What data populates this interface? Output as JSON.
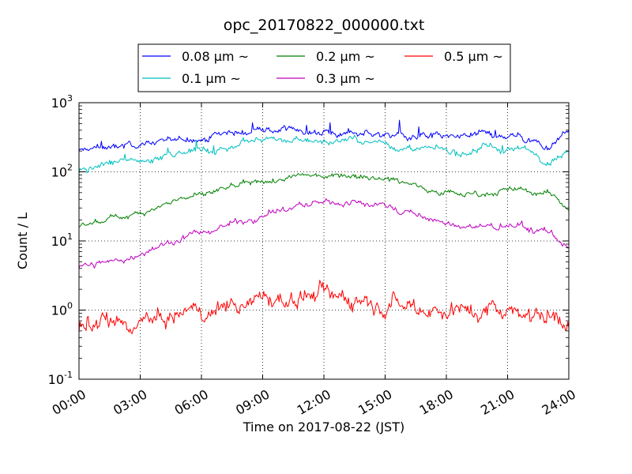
{
  "chart_data": {
    "type": "line",
    "title": "opc_20170822_000000.txt",
    "xlabel": "Time on 2017-08-22 (JST)",
    "ylabel": "Count / L",
    "y_scale": "log",
    "ylim": [
      0.1,
      1000
    ],
    "xlim": [
      "00:00",
      "24:00"
    ],
    "x_ticks": [
      "00:00",
      "03:00",
      "06:00",
      "09:00",
      "12:00",
      "15:00",
      "18:00",
      "21:00",
      "24:00"
    ],
    "y_ticks": [
      {
        "base": "10",
        "exp": "-1"
      },
      {
        "base": "10",
        "exp": "0"
      },
      {
        "base": "10",
        "exp": "1"
      },
      {
        "base": "10",
        "exp": "2"
      },
      {
        "base": "10",
        "exp": "3"
      }
    ],
    "grid": true,
    "legend_position": "top-center",
    "x": [
      "00:00",
      "01:00",
      "02:00",
      "03:00",
      "04:00",
      "05:00",
      "06:00",
      "07:00",
      "08:00",
      "09:00",
      "10:00",
      "11:00",
      "12:00",
      "13:00",
      "14:00",
      "15:00",
      "16:00",
      "17:00",
      "18:00",
      "19:00",
      "20:00",
      "21:00",
      "22:00",
      "23:00",
      "24:00"
    ],
    "series": [
      {
        "name": "0.08 μm ~",
        "color": "#0000ff",
        "noise": 0.05,
        "values": [
          200,
          220,
          240,
          260,
          270,
          300,
          320,
          350,
          400,
          420,
          400,
          400,
          380,
          370,
          380,
          350,
          320,
          300,
          300,
          320,
          330,
          340,
          300,
          220,
          450
        ]
      },
      {
        "name": "0.1 μm ~",
        "color": "#00bfbf",
        "noise": 0.05,
        "values": [
          100,
          120,
          140,
          150,
          160,
          190,
          200,
          230,
          270,
          280,
          280,
          280,
          270,
          270,
          270,
          250,
          230,
          210,
          200,
          210,
          220,
          220,
          200,
          150,
          200
        ]
      },
      {
        "name": "0.2 μm ~",
        "color": "#008000",
        "noise": 0.04,
        "values": [
          17,
          19,
          22,
          27,
          32,
          42,
          45,
          55,
          62,
          70,
          78,
          88,
          90,
          92,
          88,
          82,
          70,
          60,
          50,
          48,
          50,
          55,
          52,
          48,
          30
        ]
      },
      {
        "name": "0.3 μm ~",
        "color": "#bf00bf",
        "noise": 0.05,
        "values": [
          4.2,
          4.7,
          5.3,
          6.5,
          8.5,
          11,
          13,
          16,
          20,
          24,
          28,
          33,
          35,
          36,
          36,
          33,
          27,
          21,
          17,
          16,
          16,
          16,
          15,
          14,
          8
        ]
      },
      {
        "name": "0.5 μm ~",
        "color": "#ff0000",
        "noise": 0.13,
        "values": [
          0.5,
          0.55,
          0.6,
          0.65,
          0.7,
          0.8,
          0.95,
          1.15,
          1.35,
          1.35,
          1.4,
          1.6,
          1.65,
          1.6,
          1.55,
          1.45,
          1.3,
          1.1,
          1.0,
          1.0,
          1.05,
          1.1,
          0.95,
          0.85,
          0.8
        ]
      }
    ]
  }
}
